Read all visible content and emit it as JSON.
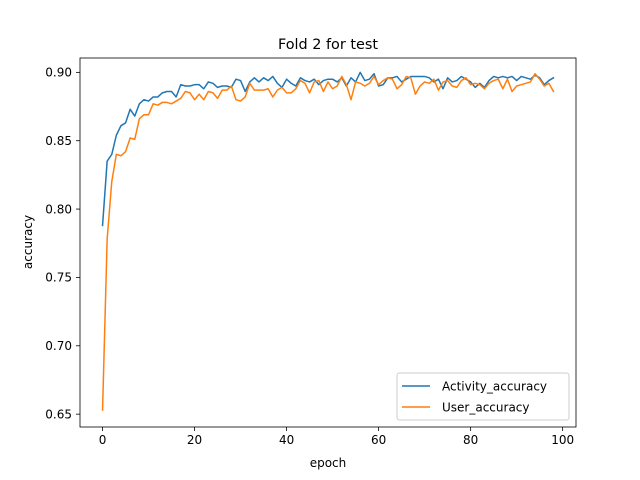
{
  "chart_data": {
    "type": "line",
    "title": "Fold 2 for test",
    "xlabel": "epoch",
    "ylabel": "accuracy",
    "xlim": [
      -4.9,
      102.9
    ],
    "ylim": [
      0.6406,
      0.9105
    ],
    "xticks": [
      0,
      20,
      40,
      60,
      80,
      100
    ],
    "xtick_labels": [
      "0",
      "20",
      "40",
      "60",
      "80",
      "100"
    ],
    "yticks": [
      0.65,
      0.7,
      0.75,
      0.8,
      0.85,
      0.9
    ],
    "ytick_labels": [
      "0.65",
      "0.70",
      "0.75",
      "0.80",
      "0.85",
      "0.90"
    ],
    "grid": false,
    "legend_position": "lower-right",
    "series": [
      {
        "name": "Activity_accuracy",
        "color": "#1f77b4",
        "x": [
          0,
          1,
          2,
          3,
          4,
          5,
          6,
          7,
          8,
          9,
          10,
          11,
          12,
          13,
          14,
          15,
          16,
          17,
          18,
          19,
          20,
          21,
          22,
          23,
          24,
          25,
          26,
          27,
          28,
          29,
          30,
          31,
          32,
          33,
          34,
          35,
          36,
          37,
          38,
          39,
          40,
          41,
          42,
          43,
          44,
          45,
          46,
          47,
          48,
          49,
          50,
          51,
          52,
          53,
          54,
          55,
          56,
          57,
          58,
          59,
          60,
          61,
          62,
          63,
          64,
          65,
          66,
          67,
          68,
          69,
          70,
          71,
          72,
          73,
          74,
          75,
          76,
          77,
          78,
          79,
          80,
          81,
          82,
          83,
          84,
          85,
          86,
          87,
          88,
          89,
          90,
          91,
          92,
          93,
          94,
          95,
          96,
          97,
          98
        ],
        "values": [
          0.788,
          0.835,
          0.84,
          0.854,
          0.861,
          0.863,
          0.873,
          0.868,
          0.877,
          0.88,
          0.879,
          0.882,
          0.882,
          0.885,
          0.886,
          0.886,
          0.882,
          0.891,
          0.89,
          0.89,
          0.891,
          0.891,
          0.888,
          0.893,
          0.892,
          0.889,
          0.89,
          0.89,
          0.889,
          0.895,
          0.894,
          0.886,
          0.893,
          0.896,
          0.893,
          0.896,
          0.894,
          0.897,
          0.892,
          0.889,
          0.895,
          0.892,
          0.89,
          0.896,
          0.894,
          0.893,
          0.895,
          0.891,
          0.894,
          0.895,
          0.895,
          0.893,
          0.896,
          0.89,
          0.896,
          0.893,
          0.9,
          0.894,
          0.895,
          0.899,
          0.89,
          0.891,
          0.896,
          0.896,
          0.897,
          0.893,
          0.895,
          0.897,
          0.897,
          0.897,
          0.897,
          0.896,
          0.893,
          0.895,
          0.888,
          0.896,
          0.893,
          0.894,
          0.897,
          0.895,
          0.893,
          0.889,
          0.892,
          0.889,
          0.894,
          0.897,
          0.896,
          0.897,
          0.896,
          0.897,
          0.894,
          0.897,
          0.896,
          0.895,
          0.898,
          0.896,
          0.891,
          0.894,
          0.896
        ]
      },
      {
        "name": "User_accuracy",
        "color": "#ff7f0e",
        "x": [
          0,
          1,
          2,
          3,
          4,
          5,
          6,
          7,
          8,
          9,
          10,
          11,
          12,
          13,
          14,
          15,
          16,
          17,
          18,
          19,
          20,
          21,
          22,
          23,
          24,
          25,
          26,
          27,
          28,
          29,
          30,
          31,
          32,
          33,
          34,
          35,
          36,
          37,
          38,
          39,
          40,
          41,
          42,
          43,
          44,
          45,
          46,
          47,
          48,
          49,
          50,
          51,
          52,
          53,
          54,
          55,
          56,
          57,
          58,
          59,
          60,
          61,
          62,
          63,
          64,
          65,
          66,
          67,
          68,
          69,
          70,
          71,
          72,
          73,
          74,
          75,
          76,
          77,
          78,
          79,
          80,
          81,
          82,
          83,
          84,
          85,
          86,
          87,
          88,
          89,
          90,
          91,
          92,
          93,
          94,
          95,
          96,
          97,
          98
        ],
        "values": [
          0.653,
          0.778,
          0.82,
          0.84,
          0.839,
          0.842,
          0.852,
          0.851,
          0.866,
          0.869,
          0.869,
          0.877,
          0.876,
          0.878,
          0.878,
          0.877,
          0.879,
          0.881,
          0.886,
          0.885,
          0.88,
          0.884,
          0.88,
          0.886,
          0.885,
          0.881,
          0.887,
          0.887,
          0.89,
          0.88,
          0.879,
          0.882,
          0.892,
          0.887,
          0.887,
          0.887,
          0.888,
          0.882,
          0.887,
          0.889,
          0.885,
          0.885,
          0.888,
          0.894,
          0.892,
          0.885,
          0.893,
          0.894,
          0.886,
          0.893,
          0.888,
          0.89,
          0.897,
          0.891,
          0.88,
          0.893,
          0.892,
          0.89,
          0.892,
          0.897,
          0.891,
          0.894,
          0.896,
          0.895,
          0.888,
          0.891,
          0.897,
          0.896,
          0.884,
          0.89,
          0.893,
          0.892,
          0.895,
          0.887,
          0.893,
          0.894,
          0.89,
          0.889,
          0.894,
          0.896,
          0.891,
          0.892,
          0.891,
          0.888,
          0.892,
          0.894,
          0.895,
          0.888,
          0.895,
          0.886,
          0.89,
          0.891,
          0.892,
          0.893,
          0.899,
          0.895,
          0.89,
          0.892,
          0.886
        ]
      }
    ]
  }
}
